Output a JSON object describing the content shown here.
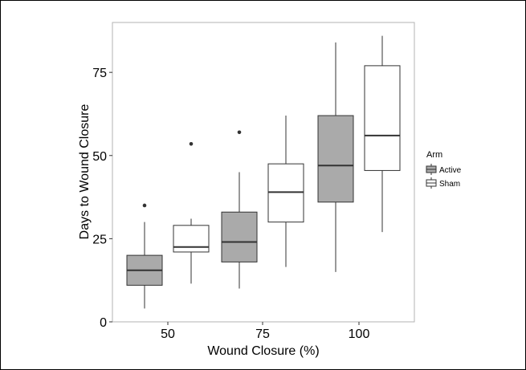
{
  "chart_data": {
    "type": "box",
    "categories": [
      "50",
      "75",
      "100"
    ],
    "xlabel": "Wound Closure (%)",
    "ylabel": "Days to Wound Closure",
    "ylim": [
      0,
      90
    ],
    "yticks": [
      0,
      25,
      50,
      75
    ],
    "grid": false,
    "legend": {
      "title": "Arm",
      "position": "right"
    },
    "colors": {
      "Active": "#aaaaaa",
      "Sham": "#ffffff",
      "stroke": "#333333"
    },
    "series": [
      {
        "name": "Active",
        "boxes": [
          {
            "category": "50",
            "min": 4,
            "q1": 11,
            "median": 15.5,
            "q3": 20,
            "max": 30,
            "outliers": [
              35
            ]
          },
          {
            "category": "75",
            "min": 10,
            "q1": 18,
            "median": 24,
            "q3": 33,
            "max": 45,
            "outliers": [
              57
            ]
          },
          {
            "category": "100",
            "min": 15,
            "q1": 36,
            "median": 47,
            "q3": 62,
            "max": 84,
            "outliers": []
          }
        ]
      },
      {
        "name": "Sham",
        "boxes": [
          {
            "category": "50",
            "min": 11.5,
            "q1": 21,
            "median": 22.5,
            "q3": 29,
            "max": 31,
            "outliers": [
              53.5
            ]
          },
          {
            "category": "75",
            "min": 16.5,
            "q1": 30,
            "median": 39,
            "q3": 47.5,
            "max": 62,
            "outliers": []
          },
          {
            "category": "100",
            "min": 27,
            "q1": 45.5,
            "median": 56,
            "q3": 77,
            "max": 86,
            "outliers": []
          }
        ]
      }
    ]
  }
}
